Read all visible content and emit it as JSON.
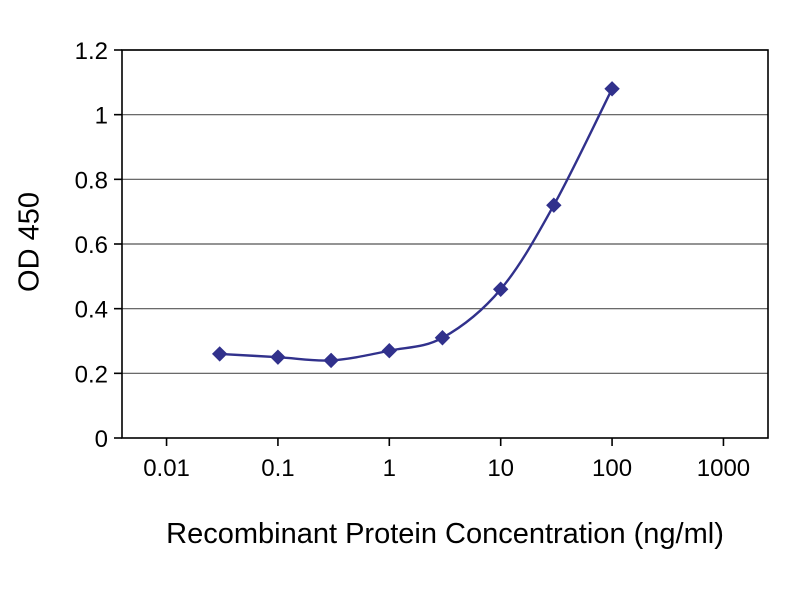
{
  "figure": {
    "background": "#ffffff"
  },
  "chart_data": {
    "type": "line",
    "title": "",
    "xlabel": "Recombinant Protein Concentration (ng/ml)",
    "ylabel": "OD 450",
    "x_scale": "log",
    "xlim": [
      0.01,
      1000
    ],
    "ylim": [
      0,
      1.2
    ],
    "x_ticks": [
      0.01,
      0.1,
      1,
      10,
      100,
      1000
    ],
    "x_tick_labels": [
      "0.01",
      "0.1",
      "1",
      "10",
      "100",
      "1000"
    ],
    "y_ticks": [
      0,
      0.2,
      0.4,
      0.6,
      0.8,
      1,
      1.2
    ],
    "y_tick_labels": [
      "0",
      "0.2",
      "0.4",
      "0.6",
      "0.8",
      "1",
      "1.2"
    ],
    "grid": "horizontal",
    "legend": "none",
    "series": [
      {
        "name": "OD 450",
        "marker": "diamond",
        "color": "#31318C",
        "x": [
          0.03,
          0.1,
          0.3,
          1,
          3,
          10,
          30,
          100
        ],
        "y": [
          0.26,
          0.25,
          0.24,
          0.27,
          0.31,
          0.46,
          0.72,
          1.08
        ]
      }
    ],
    "colors": {
      "axis": "#000000",
      "grid": "#555555",
      "text": "#000000",
      "plot_background": "#ffffff"
    }
  }
}
